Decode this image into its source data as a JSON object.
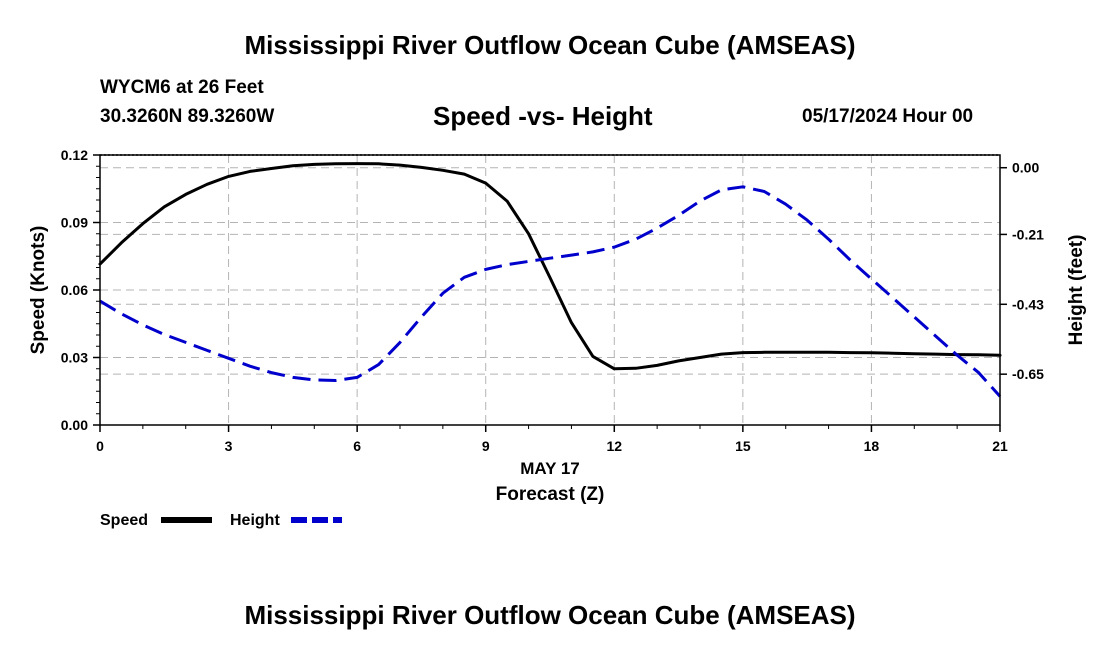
{
  "page": {
    "title_top": "Mississippi River Outflow Ocean Cube (AMSEAS)",
    "title_bottom": "Mississippi River Outflow Ocean Cube (AMSEAS)",
    "station": "WYCM6 at 26 Feet",
    "coords": "30.3260N  89.3260W",
    "datetime": "05/17/2024 Hour 00"
  },
  "chart_data": {
    "type": "line",
    "title": "Speed -vs- Height",
    "xlabel": "Forecast (Z)",
    "xlabel_date": "MAY 17",
    "ylabel": "Speed (Knots)",
    "y2label": "Height (feet)",
    "xlim": [
      0,
      21
    ],
    "ylim": [
      0,
      0.12
    ],
    "y2lim": [
      -0.81,
      0.04
    ],
    "xticks": [
      0,
      3,
      6,
      9,
      12,
      15,
      18,
      21
    ],
    "xtick_labels": [
      "0",
      "3",
      "6",
      "9",
      "12",
      "15",
      "18",
      "21"
    ],
    "yticks": [
      0,
      0.03,
      0.06,
      0.09,
      0.12
    ],
    "ytick_labels": [
      "0.00",
      "0.03",
      "0.06",
      "0.09",
      "0.12"
    ],
    "y2ticks": [
      0.0,
      -0.21,
      -0.43,
      -0.65
    ],
    "y2tick_labels": [
      "0.00",
      "-0.21",
      "-0.43",
      "-0.65"
    ],
    "grid": true,
    "legend": [
      {
        "name": "Speed",
        "color": "#000000",
        "dash": "solid"
      },
      {
        "name": "Height",
        "color": "#0000cc",
        "dash": "dashed"
      }
    ],
    "series": [
      {
        "name": "Speed",
        "axis": "left",
        "color": "#000000",
        "x": [
          0,
          0.5,
          1,
          1.5,
          2,
          2.5,
          3,
          3.5,
          4,
          4.5,
          5,
          5.5,
          6,
          6.5,
          7,
          7.5,
          8,
          8.5,
          9,
          9.5,
          10,
          10.5,
          11,
          11.5,
          12,
          12.5,
          13,
          13.5,
          14,
          14.5,
          15,
          15.5,
          16,
          16.5,
          17,
          17.5,
          18,
          18.5,
          19,
          19.5,
          20,
          20.5,
          21
        ],
        "values": [
          0.0715,
          0.081,
          0.0895,
          0.097,
          0.1025,
          0.107,
          0.1105,
          0.1127,
          0.114,
          0.1152,
          0.1158,
          0.1161,
          0.1162,
          0.1161,
          0.1155,
          0.1145,
          0.1132,
          0.1115,
          0.1075,
          0.0995,
          0.085,
          0.0655,
          0.0455,
          0.0305,
          0.025,
          0.0252,
          0.0265,
          0.0285,
          0.03,
          0.0315,
          0.0322,
          0.0323,
          0.0323,
          0.0323,
          0.0323,
          0.0322,
          0.0321,
          0.0319,
          0.0317,
          0.0315,
          0.0313,
          0.0312,
          0.031
        ]
      },
      {
        "name": "Height",
        "axis": "right",
        "color": "#0000cc",
        "x": [
          0,
          0.5,
          1,
          1.5,
          2,
          2.5,
          3,
          3.5,
          4,
          4.5,
          5,
          5.5,
          6,
          6.5,
          7,
          7.5,
          8,
          8.5,
          9,
          9.5,
          10,
          10.5,
          11,
          11.5,
          12,
          12.5,
          13,
          13.5,
          14,
          14.5,
          15,
          15.5,
          16,
          16.5,
          17,
          17.5,
          18,
          18.5,
          19,
          19.5,
          20,
          20.5,
          21
        ],
        "values": [
          -0.42,
          -0.46,
          -0.495,
          -0.525,
          -0.55,
          -0.575,
          -0.6,
          -0.625,
          -0.645,
          -0.66,
          -0.668,
          -0.67,
          -0.66,
          -0.62,
          -0.55,
          -0.47,
          -0.395,
          -0.345,
          -0.32,
          -0.305,
          -0.295,
          -0.285,
          -0.275,
          -0.265,
          -0.25,
          -0.225,
          -0.19,
          -0.15,
          -0.105,
          -0.07,
          -0.06,
          -0.075,
          -0.115,
          -0.165,
          -0.225,
          -0.29,
          -0.35,
          -0.41,
          -0.47,
          -0.53,
          -0.59,
          -0.645,
          -0.72
        ]
      }
    ]
  }
}
